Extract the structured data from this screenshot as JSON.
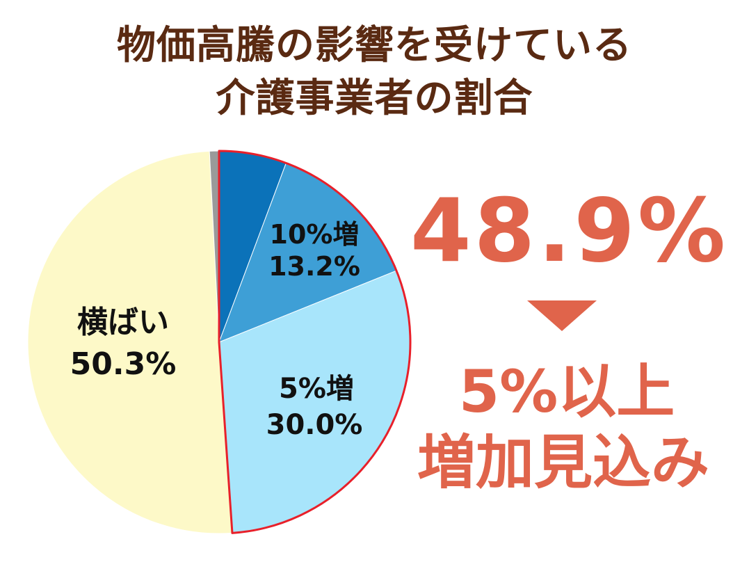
{
  "title": {
    "line1": "物価高騰の影響を受けている",
    "line2": "介護事業者の割合"
  },
  "highlight": {
    "percent": "48.9%",
    "line1": "5%以上",
    "line2": "増加見込み",
    "color": "#e0644b"
  },
  "colors": {
    "title": "#5a2a12",
    "highlight_outline": "#e8202a"
  },
  "chart_data": {
    "type": "pie",
    "start_angle_deg": 0,
    "direction": "clockwise",
    "slices": [
      {
        "category": "",
        "value": 5.7,
        "label": "",
        "pct": "",
        "color": "#0b72b9"
      },
      {
        "category": "10%増",
        "value": 13.2,
        "label": "10%増",
        "pct": "13.2%",
        "color": "#3e9fd6"
      },
      {
        "category": "5%増",
        "value": 30.0,
        "label": "5%増",
        "pct": "30.0%",
        "color": "#a8e5fb"
      },
      {
        "category": "横ばい",
        "value": 50.3,
        "label": "横ばい",
        "pct": "50.3%",
        "color": "#fdf9c8"
      },
      {
        "category": "",
        "value": 0.8,
        "label": "",
        "pct": "",
        "color": "#9a9a9a"
      }
    ],
    "highlighted_total": 48.9
  }
}
